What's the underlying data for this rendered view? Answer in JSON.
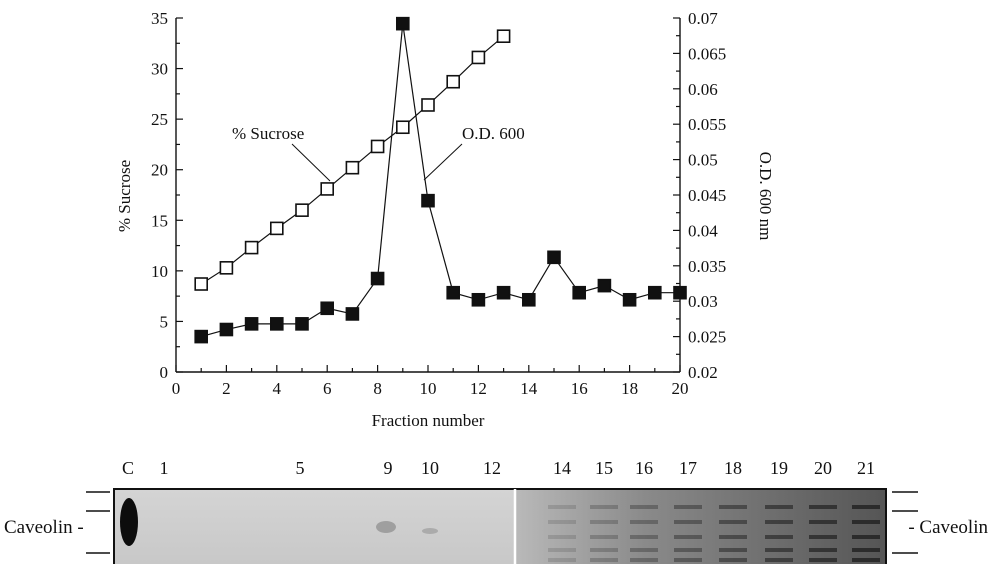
{
  "chart_data": {
    "type": "line",
    "x": [
      1,
      2,
      3,
      4,
      5,
      6,
      7,
      8,
      9,
      10,
      11,
      12,
      13,
      14,
      15,
      16,
      17,
      18,
      19,
      20
    ],
    "xlabel": "Fraction number",
    "ylabel_left": "% Sucrose",
    "ylabel_right": "O.D. 600 nm",
    "xlim": [
      0,
      20
    ],
    "ylim_left": [
      0,
      35
    ],
    "ylim_right": [
      0.02,
      0.07
    ],
    "xticks": [
      "0",
      "2",
      "4",
      "6",
      "8",
      "10",
      "12",
      "14",
      "16",
      "18",
      "20"
    ],
    "yticks_left": [
      "0",
      "5",
      "10",
      "15",
      "20",
      "25",
      "30",
      "35"
    ],
    "yticks_right": [
      "0.02",
      "0.025",
      "0.03",
      "0.035",
      "0.04",
      "0.045",
      "0.05",
      "0.055",
      "0.06",
      "0.065",
      "0.07"
    ],
    "grid": false,
    "series": [
      {
        "name": "% Sucrose",
        "axis": "left",
        "marker": "open-square",
        "x": [
          1,
          2,
          3,
          4,
          5,
          6,
          7,
          8,
          9,
          10,
          11,
          12,
          13
        ],
        "values": [
          8.7,
          10.3,
          12.3,
          14.2,
          16.0,
          18.1,
          20.2,
          22.3,
          24.2,
          26.4,
          28.7,
          31.1,
          33.2
        ]
      },
      {
        "name": "O.D. 600",
        "axis": "right",
        "marker": "filled-square",
        "x": [
          1,
          2,
          3,
          4,
          5,
          6,
          7,
          8,
          9,
          10,
          11,
          12,
          13,
          14,
          15,
          16,
          17,
          18,
          19,
          20
        ],
        "values": [
          0.025,
          0.026,
          0.0268,
          0.0268,
          0.0268,
          0.029,
          0.0282,
          0.0332,
          0.0692,
          0.0442,
          0.0312,
          0.0302,
          0.0312,
          0.0302,
          0.0362,
          0.0312,
          0.0322,
          0.0302,
          0.0312,
          0.0312
        ]
      }
    ],
    "annotations": [
      "% Sucrose",
      "O.D. 600"
    ]
  },
  "blot": {
    "lane_labels": [
      "C",
      "1",
      "5",
      "9",
      "10",
      "12",
      "14",
      "15",
      "16",
      "17",
      "18",
      "19",
      "20",
      "21"
    ],
    "left_label": "Caveolin -",
    "right_label": "- Caveolin"
  }
}
